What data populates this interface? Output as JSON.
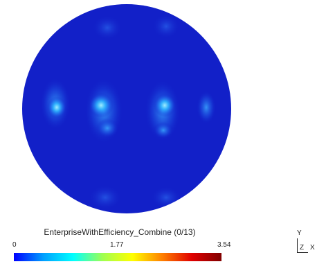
{
  "colorbar": {
    "title": "EnterpriseWithEfficiency_Combine (0/13)",
    "min_label": "0",
    "mid_label": "1.77",
    "max_label": "3.54",
    "colormap": [
      "#0000ff",
      "#00a0ff",
      "#00ffff",
      "#a0ff50",
      "#ffff00",
      "#ff8000",
      "#e00000",
      "#800000"
    ]
  },
  "plot": {
    "disk_color": "#1220c8",
    "hotspot_color": "#7fe6ff"
  },
  "axes_triad": {
    "y_label": "Y",
    "z_label": "Z",
    "x_label": "X"
  }
}
